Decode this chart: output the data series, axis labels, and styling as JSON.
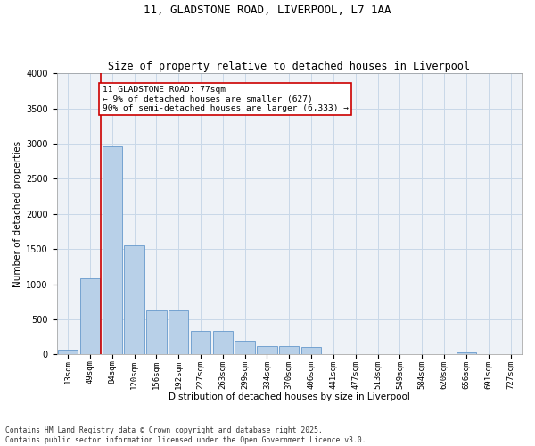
{
  "title_line1": "11, GLADSTONE ROAD, LIVERPOOL, L7 1AA",
  "title_line2": "Size of property relative to detached houses in Liverpool",
  "xlabel": "Distribution of detached houses by size in Liverpool",
  "ylabel": "Number of detached properties",
  "categories": [
    "13sqm",
    "49sqm",
    "84sqm",
    "120sqm",
    "156sqm",
    "192sqm",
    "227sqm",
    "263sqm",
    "299sqm",
    "334sqm",
    "370sqm",
    "406sqm",
    "441sqm",
    "477sqm",
    "513sqm",
    "549sqm",
    "584sqm",
    "620sqm",
    "656sqm",
    "691sqm",
    "727sqm"
  ],
  "values": [
    70,
    1080,
    2960,
    1550,
    630,
    630,
    330,
    330,
    195,
    120,
    120,
    110,
    0,
    0,
    0,
    0,
    0,
    0,
    35,
    0,
    0
  ],
  "bar_color": "#b8d0e8",
  "bar_edge_color": "#6699cc",
  "vline_x": 1.5,
  "vline_color": "#cc0000",
  "annotation_text": "11 GLADSTONE ROAD: 77sqm\n← 9% of detached houses are smaller (627)\n90% of semi-detached houses are larger (6,333) →",
  "annotation_box_color": "#cc0000",
  "ylim": [
    0,
    4000
  ],
  "yticks": [
    0,
    500,
    1000,
    1500,
    2000,
    2500,
    3000,
    3500,
    4000
  ],
  "grid_color": "#c8d8e8",
  "background_color": "#eef2f7",
  "footnote": "Contains HM Land Registry data © Crown copyright and database right 2025.\nContains public sector information licensed under the Open Government Licence v3.0.",
  "title_fontsize": 9,
  "subtitle_fontsize": 8.5,
  "axis_label_fontsize": 7.5,
  "tick_fontsize": 6.5,
  "annotation_fontsize": 6.8
}
